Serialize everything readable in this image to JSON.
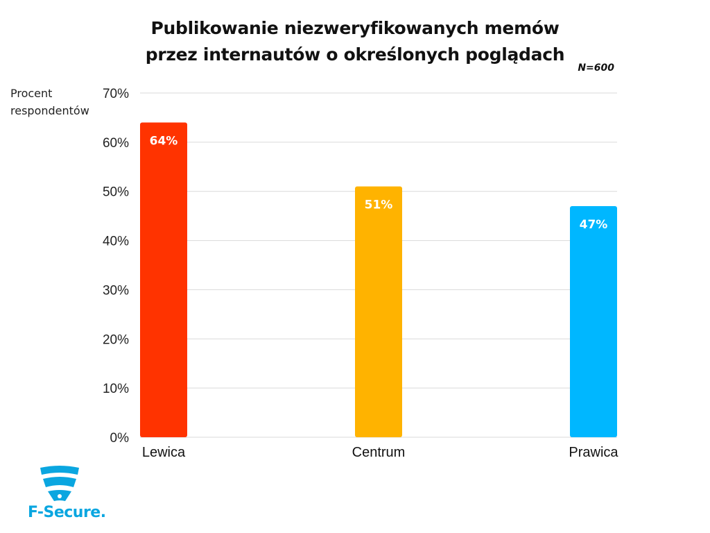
{
  "chart_data": {
    "type": "bar",
    "title_lines": [
      "Publikowanie niezweryfikowanych memów",
      "przez internautów o określonych poglądach"
    ],
    "note": "N=600",
    "ylabel": "Procent respondentów",
    "xlabel": "",
    "ylim": [
      0,
      70
    ],
    "yticks": [
      "0%",
      "10%",
      "20%",
      "30%",
      "40%",
      "50%",
      "60%",
      "70%"
    ],
    "ytick_values": [
      0,
      10,
      20,
      30,
      40,
      50,
      60,
      70
    ],
    "categories": [
      "Lewica",
      "Centrum",
      "Prawica"
    ],
    "values": [
      64,
      51,
      47
    ],
    "data_labels": [
      "64%",
      "51%",
      "47%"
    ],
    "colors": [
      "#ff3300",
      "#ffb300",
      "#00b7ff"
    ],
    "grid": true,
    "legend": "none"
  },
  "brand": {
    "name": "F-Secure",
    "suffix": ".",
    "color": "#0aa6e0",
    "icon": "f-secure-shield-icon"
  }
}
